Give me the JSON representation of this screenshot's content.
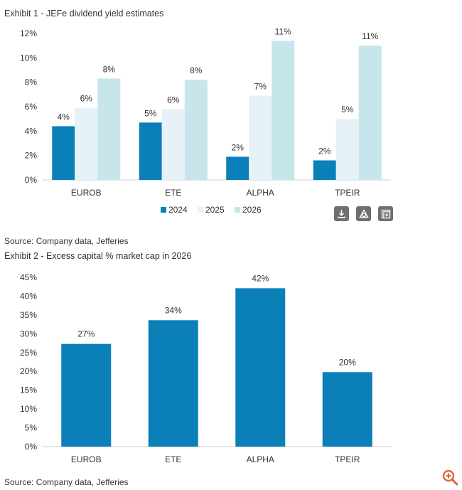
{
  "exhibit1": {
    "title": "Exhibit 1 - JEFe dividend yield estimates",
    "source": "Source: Company data, Jefferies",
    "toolbar": {
      "download_icon": "download-icon",
      "shape_icon": "shapes-icon",
      "expand_icon": "expand-plus-icon"
    }
  },
  "exhibit2": {
    "title": "Exhibit 2 - Excess capital % market cap in 2026",
    "source": "Source: Company data, Jefferies"
  },
  "zoom_icon": "zoom-in-icon",
  "colors": {
    "c2024": "#0a7fb8",
    "c2025": "#e6f1f8",
    "c2026": "#c6e6ec",
    "bar2": "#0a7fb8",
    "axis": "#cccccc",
    "toolbar": "#6f6f6f",
    "zoom": "#e0653a"
  },
  "chart_data": [
    {
      "type": "bar",
      "title": "Exhibit 1 - JEFe dividend yield estimates",
      "categories": [
        "EUROB",
        "ETE",
        "ALPHA",
        "TPEIR"
      ],
      "series": [
        {
          "name": "2024",
          "values": [
            4.4,
            4.7,
            1.9,
            1.6
          ],
          "labels": [
            "4%",
            "5%",
            "2%",
            "2%"
          ]
        },
        {
          "name": "2025",
          "values": [
            5.9,
            5.8,
            6.9,
            5.0
          ],
          "labels": [
            "6%",
            "6%",
            "7%",
            "5%"
          ]
        },
        {
          "name": "2026",
          "values": [
            8.3,
            8.2,
            11.4,
            11.0
          ],
          "labels": [
            "8%",
            "8%",
            "11%",
            "11%"
          ]
        }
      ],
      "ylim": [
        0,
        12
      ],
      "yticks": [
        "0%",
        "2%",
        "4%",
        "6%",
        "8%",
        "10%",
        "12%"
      ],
      "legend_position": "bottom",
      "grid": false
    },
    {
      "type": "bar",
      "title": "Exhibit 2 - Excess capital % market cap in 2026",
      "categories": [
        "EUROB",
        "ETE",
        "ALPHA",
        "TPEIR"
      ],
      "values": [
        27.3,
        33.6,
        42.1,
        19.8
      ],
      "labels": [
        "27%",
        "34%",
        "42%",
        "20%"
      ],
      "ylim": [
        0,
        45
      ],
      "yticks": [
        "0%",
        "5%",
        "10%",
        "15%",
        "20%",
        "25%",
        "30%",
        "35%",
        "40%",
        "45%"
      ],
      "grid": false
    }
  ]
}
